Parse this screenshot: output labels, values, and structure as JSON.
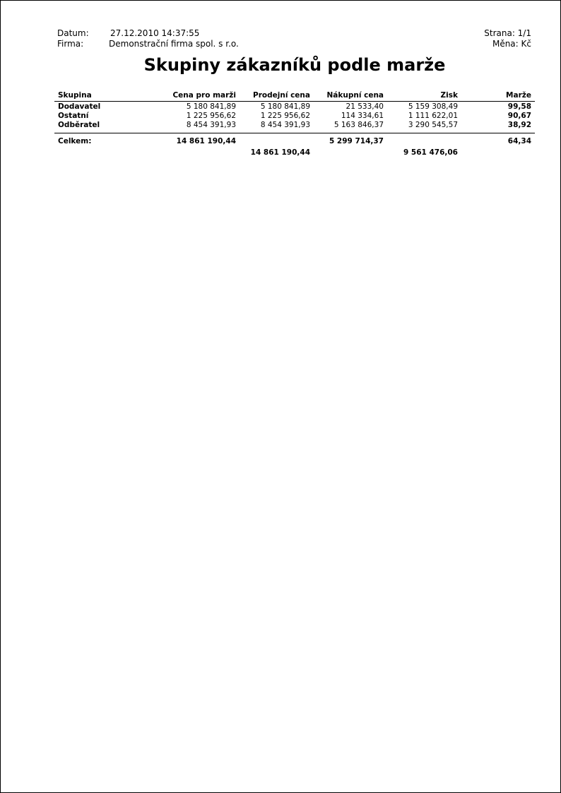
{
  "header": {
    "datum_label": "Datum:",
    "datum_value": "27.12.2010 14:37:55",
    "firma_label": "Firma:",
    "firma_value": "Demonstrační firma spol. s r.o.",
    "strana": "Strana: 1/1",
    "mena": "Měna: Kč"
  },
  "title": "Skupiny zákazníků podle marže",
  "table": {
    "columns": [
      "Skupina",
      "Cena pro marži",
      "Prodejní cena",
      "Nákupní cena",
      "Zisk",
      "Marže"
    ],
    "rows": [
      [
        "Dodavatel",
        "5 180 841,89",
        "5 180 841,89",
        "21 533,40",
        "5 159 308,49",
        "99,58"
      ],
      [
        "Ostatní",
        "1 225 956,62",
        "1 225 956,62",
        "114 334,61",
        "1 111 622,01",
        "90,67"
      ],
      [
        "Odběratel",
        "8 454 391,93",
        "8 454 391,93",
        "5 163 846,37",
        "3 290 545,57",
        "38,92"
      ]
    ],
    "totals": {
      "label": "Celkem:",
      "cena_pro_marzi": "14 861 190,44",
      "nakupni_cena": "5 299 714,37",
      "marze": "64,34",
      "prodejni_cena": "14 861 190,44",
      "zisk": "9 561 476,06"
    }
  }
}
